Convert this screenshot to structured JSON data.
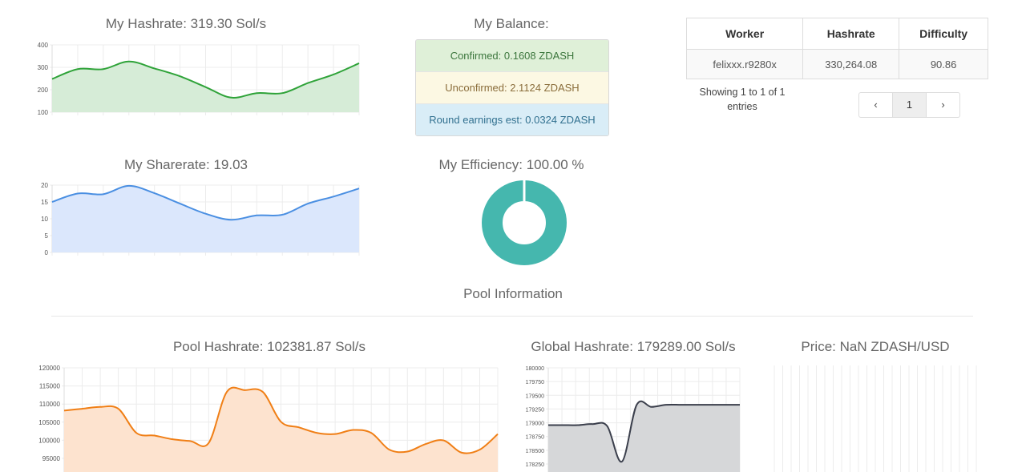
{
  "my_hashrate": {
    "title": "My Hashrate: 319.30 Sol/s",
    "color": "#2fa339",
    "fill": "#d6ecd7",
    "chart_data": {
      "type": "area",
      "y_ticks": [
        "400",
        "300",
        "200",
        "100"
      ],
      "ylim": [
        100,
        400
      ],
      "values": [
        248,
        292,
        292,
        326,
        295,
        260,
        212,
        165,
        185,
        185,
        230,
        268,
        318
      ]
    }
  },
  "my_sharerate": {
    "title": "My Sharerate: 19.03",
    "color": "#4a8fe2",
    "fill": "#dbe7fc",
    "chart_data": {
      "type": "area",
      "y_ticks": [
        "20",
        "15",
        "10",
        "5",
        "0"
      ],
      "ylim": [
        0,
        20
      ],
      "values": [
        15,
        17.5,
        17.3,
        19.8,
        17.6,
        14.5,
        11.5,
        9.7,
        11,
        11.2,
        14.5,
        16.6,
        19
      ]
    }
  },
  "balance": {
    "title": "My Balance:",
    "confirmed": "Confirmed: 0.1608 ZDASH",
    "unconfirmed": "Unconfirmed: 2.1124 ZDASH",
    "round": "Round earnings est: 0.0324 ZDASH"
  },
  "efficiency": {
    "title": "My Efficiency: 100.00 %",
    "color": "#45b7ae",
    "chart_data": {
      "type": "pie",
      "values": [
        100
      ]
    }
  },
  "workers": {
    "headers": [
      "Worker",
      "Hashrate",
      "Difficulty"
    ],
    "rows": [
      [
        "felixxx.r9280x",
        "330,264.08",
        "90.86"
      ]
    ],
    "info": "Showing 1 to 1 of 1 entries",
    "pager": {
      "prev": "‹",
      "page": "1",
      "next": "›"
    }
  },
  "pool_info_title": "Pool Information",
  "pool_hashrate": {
    "title": "Pool Hashrate: 102381.87 Sol/s",
    "color": "#f07f16",
    "fill": "#fde3cf",
    "chart_data": {
      "type": "area",
      "y_ticks": [
        "120000",
        "115000",
        "110000",
        "105000",
        "100000",
        "95000"
      ],
      "ylim": [
        92000,
        120000
      ],
      "values": [
        108500,
        109000,
        109500,
        109000,
        102500,
        101800,
        100800,
        100300,
        99800,
        113500,
        114000,
        113500,
        105500,
        104000,
        102500,
        102200,
        103300,
        102500,
        98000,
        97500,
        99500,
        100500,
        97200,
        98000,
        102200
      ]
    }
  },
  "global_hashrate": {
    "title": "Global Hashrate: 179289.00 Sol/s",
    "color": "#3b3f4c",
    "fill": "#d6d7d9",
    "chart_data": {
      "type": "area",
      "y_ticks": [
        "180000",
        "179750",
        "179500",
        "179250",
        "179000",
        "178750",
        "178500",
        "178250"
      ],
      "ylim": [
        178000,
        180000
      ],
      "values": [
        178900,
        178900,
        178900,
        178920,
        178880,
        178200,
        179290,
        179250,
        179290,
        179290,
        179290,
        179290,
        179290,
        179290
      ]
    }
  },
  "price": {
    "title": "Price: NaN ZDASH/USD"
  }
}
